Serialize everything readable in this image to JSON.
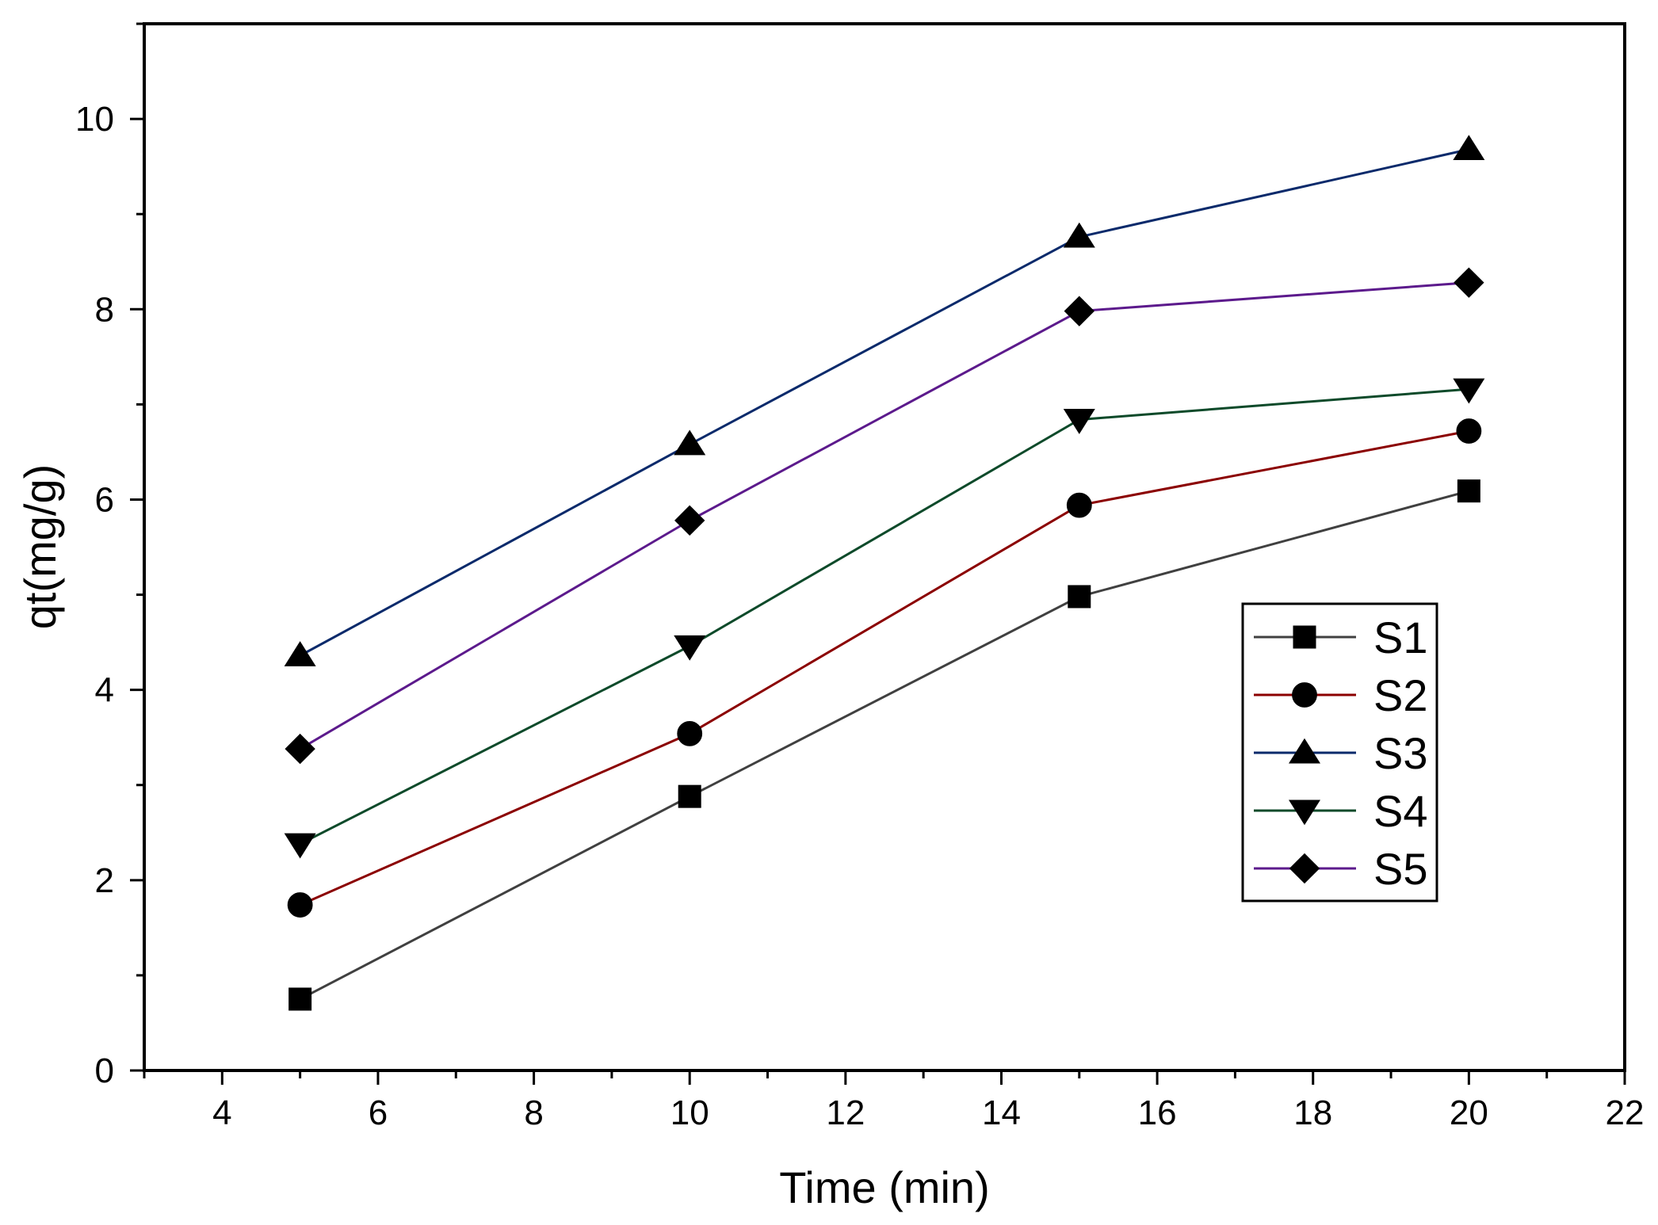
{
  "chart_data": {
    "type": "line",
    "title": "",
    "xlabel": "Time (min)",
    "ylabel": "qt(mg/g)",
    "xlim": [
      3,
      22
    ],
    "ylim": [
      0,
      11
    ],
    "xticks": [
      4,
      6,
      8,
      10,
      12,
      14,
      16,
      18,
      20,
      22
    ],
    "yticks": [
      0,
      2,
      4,
      6,
      8,
      10
    ],
    "x": [
      5,
      10,
      15,
      20
    ],
    "legend_position": "center-right",
    "series": [
      {
        "name": "S1",
        "marker": "square",
        "color": "#404040",
        "values": [
          0.75,
          2.88,
          4.98,
          6.09
        ]
      },
      {
        "name": "S2",
        "marker": "circle",
        "color": "#8B0000",
        "values": [
          1.74,
          3.54,
          5.94,
          6.72
        ]
      },
      {
        "name": "S3",
        "marker": "triangle-up",
        "color": "#0A2A6B",
        "values": [
          4.36,
          6.58,
          8.76,
          9.68
        ]
      },
      {
        "name": "S4",
        "marker": "triangle-down",
        "color": "#0D4A2A",
        "values": [
          2.38,
          4.46,
          6.84,
          7.16
        ]
      },
      {
        "name": "S5",
        "marker": "diamond",
        "color": "#5C1A8C",
        "values": [
          3.38,
          5.78,
          7.98,
          8.28
        ]
      }
    ]
  }
}
